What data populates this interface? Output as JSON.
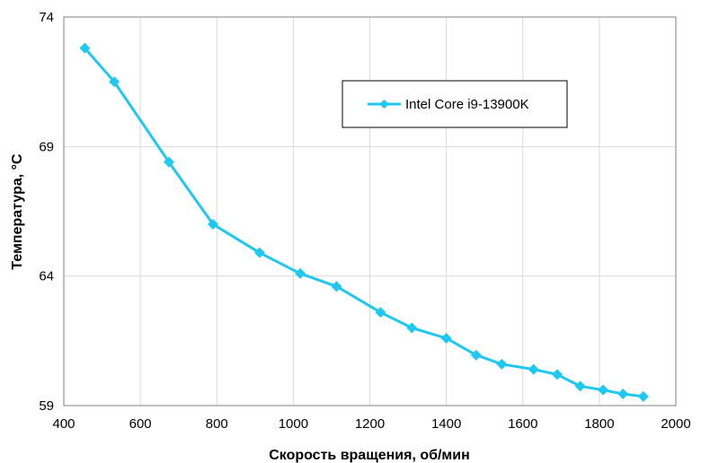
{
  "chart_data": {
    "type": "line",
    "xlabel": "Скорость вращения, об/мин",
    "ylabel": "Температура, °C",
    "xlim": [
      400,
      2000
    ],
    "ylim": [
      59,
      74
    ],
    "xticks": [
      400,
      600,
      800,
      1000,
      1200,
      1400,
      1600,
      1800,
      2000
    ],
    "yticks": [
      59,
      64,
      69,
      74
    ],
    "grid": true,
    "legend_position": "top-right",
    "series": [
      {
        "name": "Intel Core i9-13900K",
        "color": "#1ec8f0",
        "marker": "diamond",
        "x": [
          455,
          532,
          675,
          790,
          912,
          1018,
          1113,
          1228,
          1310,
          1400,
          1478,
          1545,
          1628,
          1690,
          1750,
          1810,
          1862,
          1915
        ],
        "y": [
          72.8,
          71.5,
          68.4,
          66.0,
          64.9,
          64.1,
          63.6,
          62.6,
          62.0,
          61.6,
          60.95,
          60.6,
          60.4,
          60.2,
          59.75,
          59.6,
          59.45,
          59.35
        ]
      }
    ]
  }
}
